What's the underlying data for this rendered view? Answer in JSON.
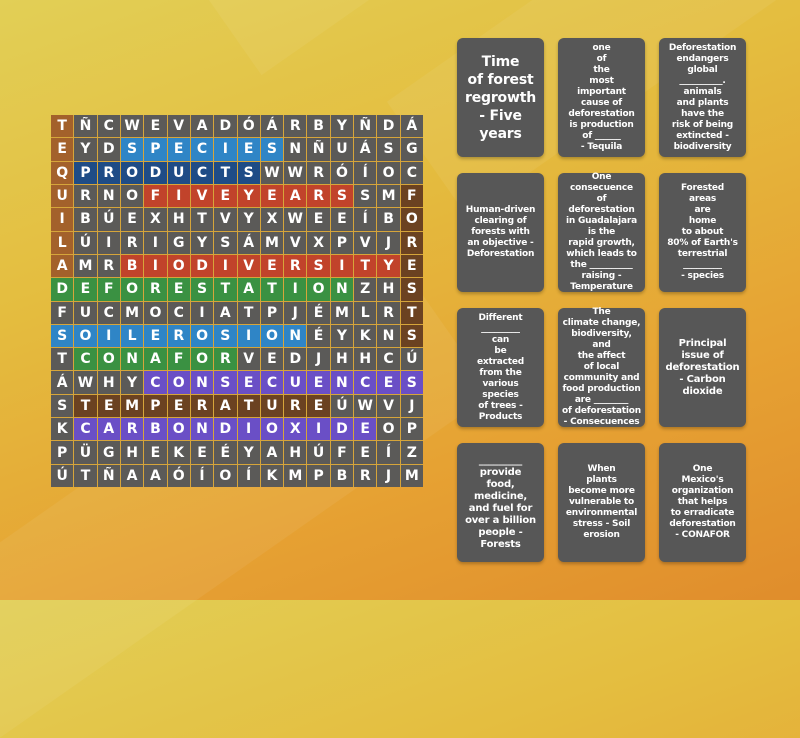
{
  "palette": {
    "cell_default": "#5b5a58",
    "background_top": "#e2cf56",
    "background_bottom": "#e08d2c",
    "card_bg": "#575757"
  },
  "wordsearch": {
    "rows": [
      [
        "T",
        "Ñ",
        "C",
        "W",
        "E",
        "V",
        "A",
        "D",
        "Ó",
        "Á",
        "R",
        "B",
        "Y",
        "Ñ",
        "D",
        "Á"
      ],
      [
        "E",
        "Y",
        "D",
        "S",
        "P",
        "E",
        "C",
        "I",
        "E",
        "S",
        "N",
        "Ñ",
        "U",
        "Á",
        "S",
        "G"
      ],
      [
        "Q",
        "P",
        "R",
        "O",
        "D",
        "U",
        "C",
        "T",
        "S",
        "W",
        "W",
        "R",
        "Ó",
        "Í",
        "O",
        "C"
      ],
      [
        "U",
        "R",
        "N",
        "O",
        "F",
        "I",
        "V",
        "E",
        "Y",
        "E",
        "A",
        "R",
        "S",
        "S",
        "M",
        "F"
      ],
      [
        "I",
        "B",
        "Ú",
        "E",
        "X",
        "H",
        "T",
        "V",
        "Y",
        "X",
        "W",
        "E",
        "E",
        "Í",
        "B",
        "O"
      ],
      [
        "L",
        "Ú",
        "I",
        "R",
        "I",
        "G",
        "Y",
        "S",
        "Á",
        "M",
        "V",
        "X",
        "P",
        "V",
        "J",
        "R"
      ],
      [
        "A",
        "M",
        "R",
        "B",
        "I",
        "O",
        "D",
        "I",
        "V",
        "E",
        "R",
        "S",
        "I",
        "T",
        "Y",
        "E"
      ],
      [
        "D",
        "E",
        "F",
        "O",
        "R",
        "E",
        "S",
        "T",
        "A",
        "T",
        "I",
        "O",
        "N",
        "Z",
        "H",
        "S"
      ],
      [
        "F",
        "U",
        "C",
        "M",
        "O",
        "C",
        "I",
        "A",
        "T",
        "P",
        "J",
        "É",
        "M",
        "L",
        "R",
        "T"
      ],
      [
        "S",
        "O",
        "I",
        "L",
        "E",
        "R",
        "O",
        "S",
        "I",
        "O",
        "N",
        "É",
        "Y",
        "K",
        "N",
        "S"
      ],
      [
        "T",
        "C",
        "O",
        "N",
        "A",
        "F",
        "O",
        "R",
        "V",
        "E",
        "D",
        "J",
        "H",
        "H",
        "C",
        "Ú"
      ],
      [
        "Á",
        "W",
        "H",
        "Y",
        "C",
        "O",
        "N",
        "S",
        "E",
        "C",
        "U",
        "E",
        "N",
        "C",
        "E",
        "S"
      ],
      [
        "S",
        "T",
        "E",
        "M",
        "P",
        "E",
        "R",
        "A",
        "T",
        "U",
        "R",
        "E",
        "Ú",
        "W",
        "V",
        "J"
      ],
      [
        "K",
        "C",
        "A",
        "R",
        "B",
        "O",
        "N",
        "D",
        "I",
        "O",
        "X",
        "I",
        "D",
        "E",
        "O",
        "P"
      ],
      [
        "P",
        "Ü",
        "G",
        "H",
        "E",
        "K",
        "E",
        "É",
        "Y",
        "A",
        "H",
        "Ú",
        "F",
        "E",
        "Í",
        "Z"
      ],
      [
        "Ú",
        "T",
        "Ñ",
        "A",
        "A",
        "Ó",
        "Í",
        "O",
        "Í",
        "K",
        "M",
        "P",
        "B",
        "R",
        "J",
        "M"
      ]
    ],
    "found_words": [
      {
        "word": "TEQUILA",
        "color": "#a3612b",
        "direction": "vertical",
        "col": 0,
        "row_start": 0,
        "row_end": 6
      },
      {
        "word": "SPECIES",
        "color": "#2f85c6",
        "direction": "horizontal",
        "row": 1,
        "col_start": 3,
        "col_end": 9
      },
      {
        "word": "PRODUCTS",
        "color": "#1f4c86",
        "direction": "horizontal",
        "row": 2,
        "col_start": 1,
        "col_end": 8
      },
      {
        "word": "FIVEYEARS",
        "color": "#c1432b",
        "direction": "horizontal",
        "row": 3,
        "col_start": 4,
        "col_end": 12
      },
      {
        "word": "FORESTS",
        "color": "#6b4221",
        "direction": "vertical",
        "col": 15,
        "row_start": 3,
        "row_end": 9
      },
      {
        "word": "BIODIVERSITY",
        "color": "#c1432b",
        "direction": "horizontal",
        "row": 6,
        "col_start": 3,
        "col_end": 14
      },
      {
        "word": "DEFORESTATION",
        "color": "#3a9142",
        "direction": "horizontal",
        "row": 7,
        "col_start": 0,
        "col_end": 12
      },
      {
        "word": "SOILEROSION",
        "color": "#2f85c6",
        "direction": "horizontal",
        "row": 9,
        "col_start": 0,
        "col_end": 10
      },
      {
        "word": "CONAFOR",
        "color": "#3a9142",
        "direction": "horizontal",
        "row": 10,
        "col_start": 1,
        "col_end": 7
      },
      {
        "word": "CONSECUENCES",
        "color": "#6a4fc6",
        "direction": "horizontal",
        "row": 11,
        "col_start": 4,
        "col_end": 15
      },
      {
        "word": "TEMPERATURE",
        "color": "#6b4221",
        "direction": "horizontal",
        "row": 12,
        "col_start": 1,
        "col_end": 11
      },
      {
        "word": "CARBONDIOXIDE",
        "color": "#6a4fc6",
        "direction": "horizontal",
        "row": 13,
        "col_start": 1,
        "col_end": 13
      }
    ]
  },
  "cards": [
    {
      "text": "Time\nof forest\nregrowth\n- Five\nyears",
      "size": "big"
    },
    {
      "text": "one\nof\nthe\nmost\nimportant\ncause of\ndeforestation\nis production\nof ______\n- Tequila",
      "size": "small"
    },
    {
      "text": "Deforestation\nendangers\nglobal\n__________.\nanimals\nand plants\nhave the\nrisk of being\nextincted -\nbiodiversity",
      "size": "small"
    },
    {
      "text": "Human-driven\nclearing of\nforests with\nan objective -\nDeforestation",
      "size": "small"
    },
    {
      "text": "One\nconsecuence\nof\ndeforestation\nin Guadalajara\nis the\nrapid growth,\nwhich leads to\nthe __________\nraising -\nTemperature",
      "size": "small"
    },
    {
      "text": "Forested\nareas\nare\nhome\nto about\n80% of Earth's\nterrestrial\n_________\n- species",
      "size": "small"
    },
    {
      "text": "Different\n_________\ncan\nbe\nextracted\nfrom the\nvarious\nspecies\nof trees -\nProducts",
      "size": "small"
    },
    {
      "text": "The\nclimate change,\nbiodiversity, and\nthe affect\nof local\ncommunity and\nfood production\nare ________\nof deforestation\n- Consecuences",
      "size": "small"
    },
    {
      "text": "Principal\nissue of\ndeforestation\n- Carbon\ndioxide",
      "size": "mid"
    },
    {
      "text": "_________\nprovide\nfood,\nmedicine,\nand fuel for\nover a billion\npeople -\nForests",
      "size": "mid"
    },
    {
      "text": "When\nplants\nbecome more\nvulnerable to\nenvironmental\nstress - Soil\nerosion",
      "size": "small"
    },
    {
      "text": "One\nMexico's\norganization\nthat helps\nto erradicate\ndeforestation\n- CONAFOR",
      "size": "small"
    }
  ]
}
